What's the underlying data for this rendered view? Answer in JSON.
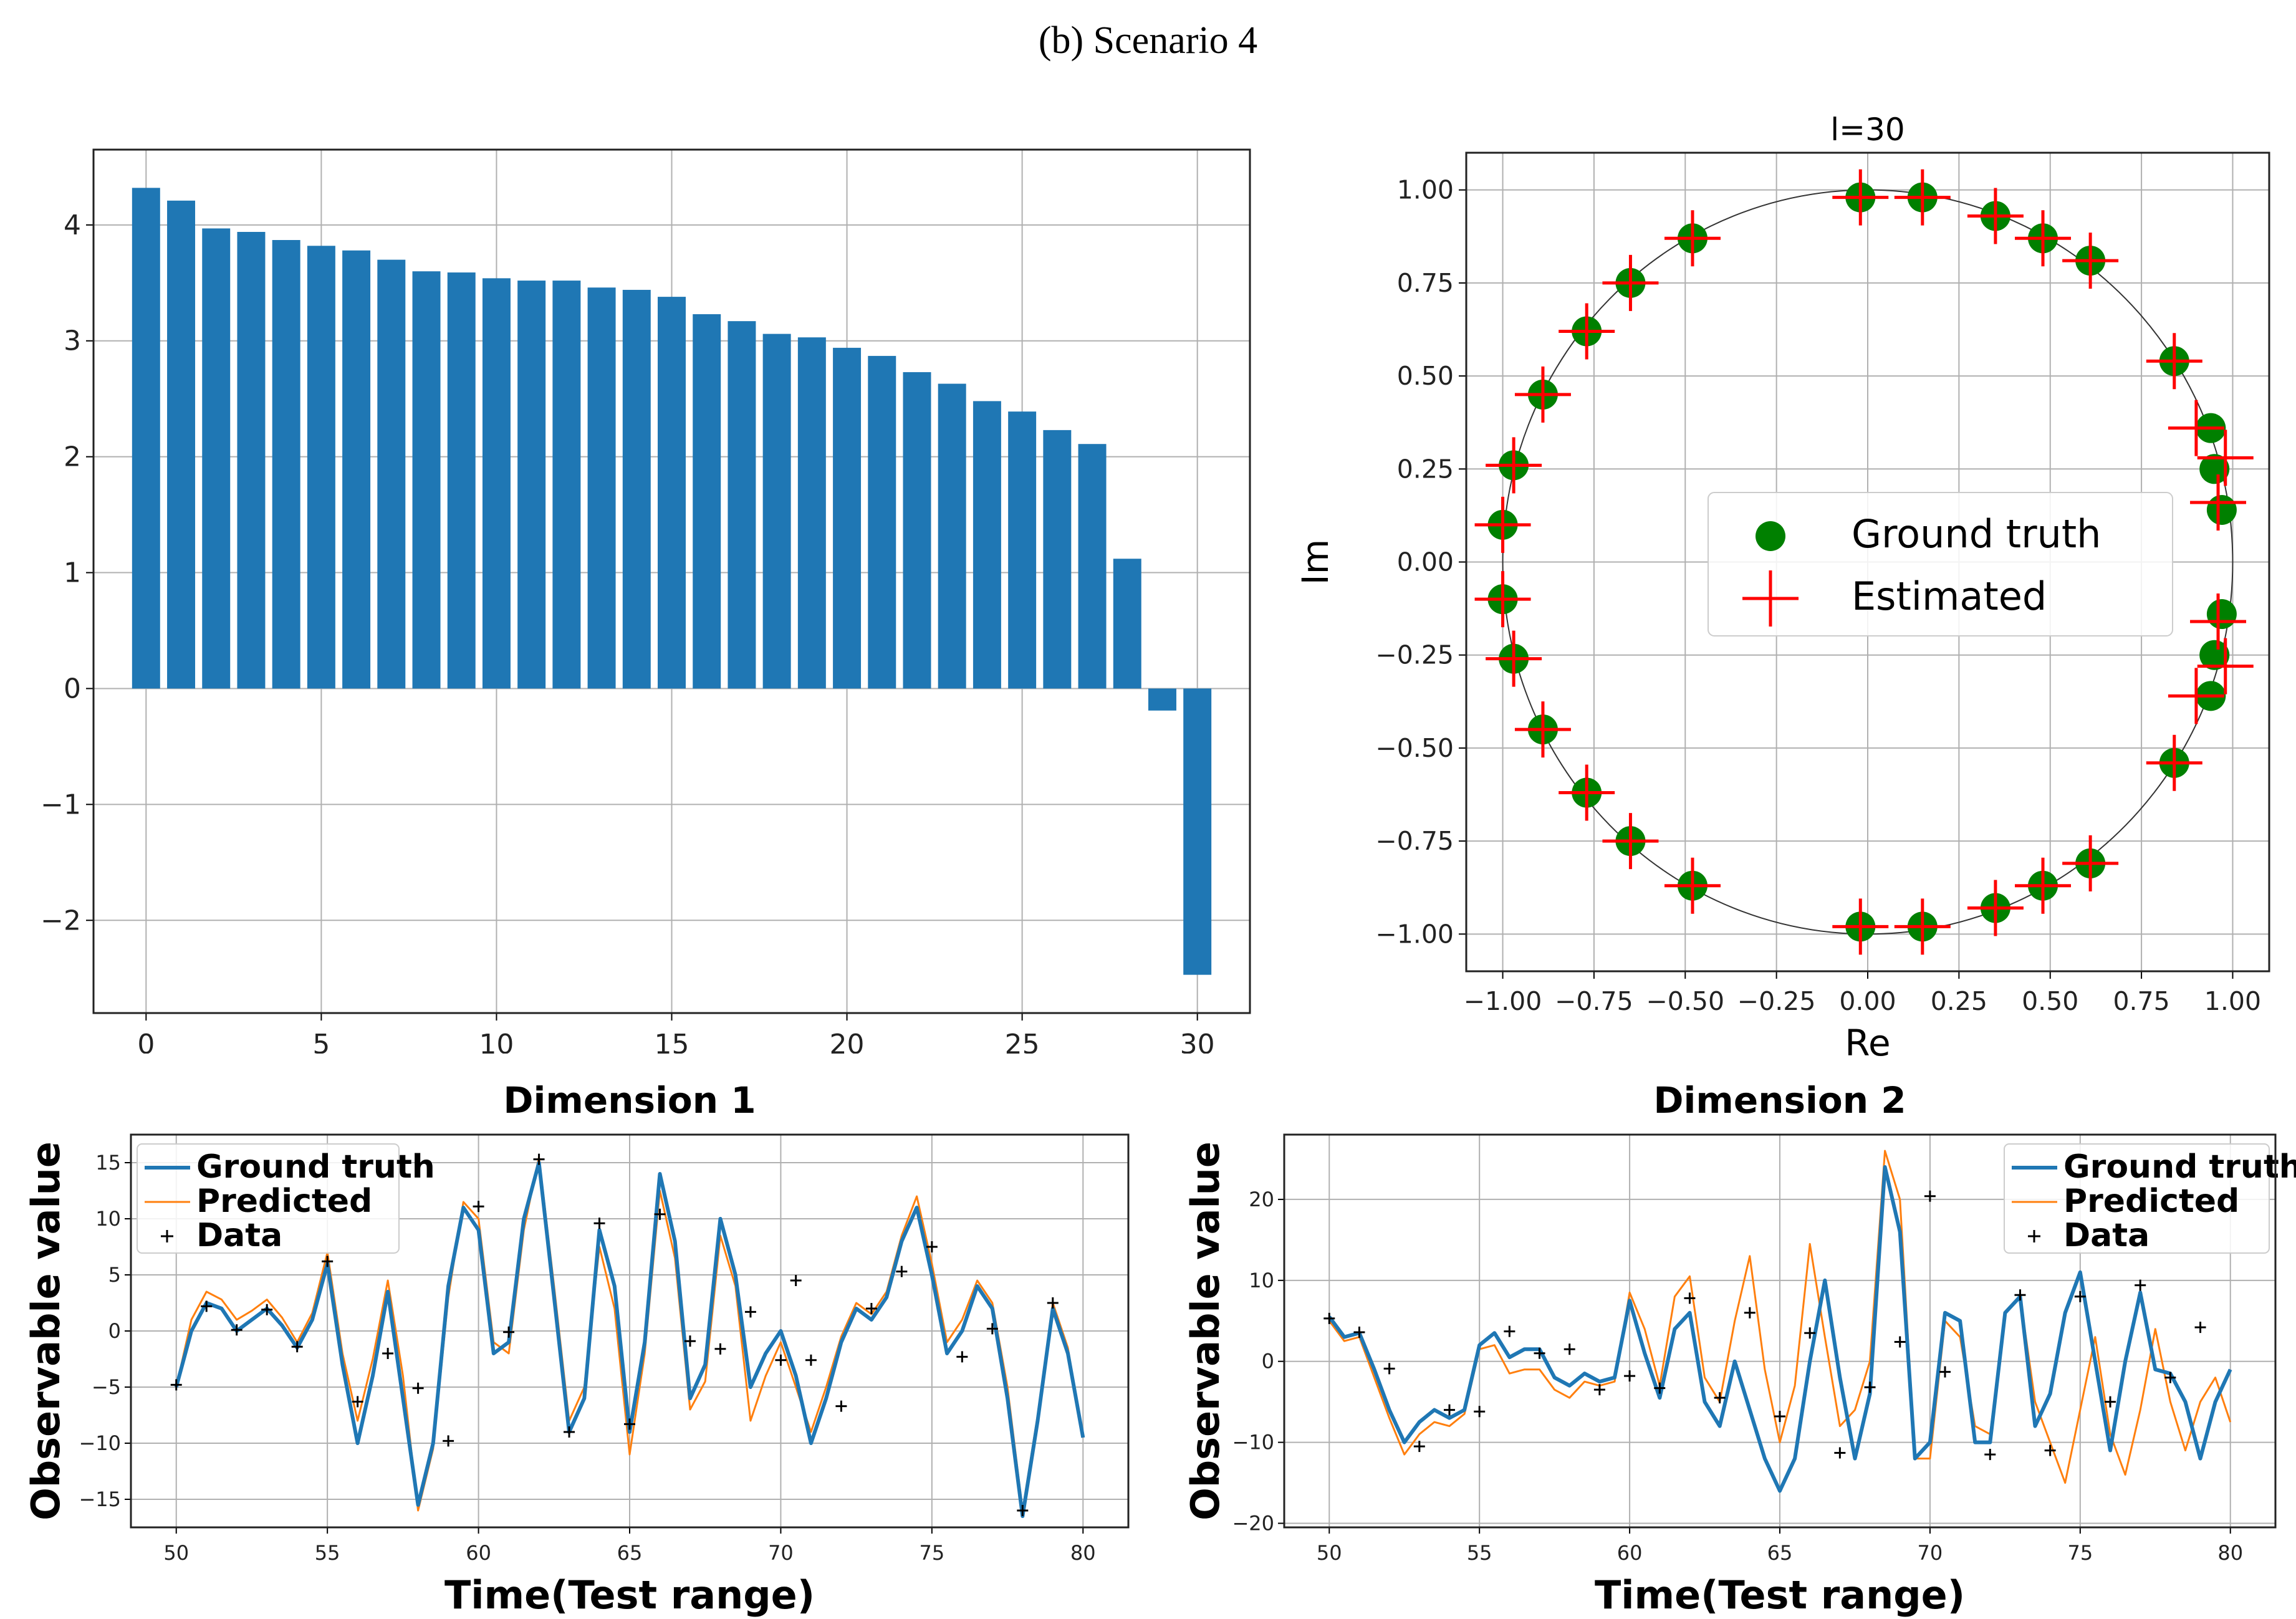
{
  "figure_title": "(b) Scenario 4",
  "colors": {
    "bar": "#1f77b4",
    "ground_truth_dot": "#008000",
    "estimated_cross": "#ff0000",
    "series_truth": "#1f77b4",
    "series_pred": "#ff7f0e",
    "data_marker": "#000000",
    "grid": "#b0b0b0"
  },
  "chart_data": [
    {
      "type": "bar",
      "title": "",
      "xlabel": "",
      "ylabel": "",
      "x": [
        0,
        1,
        2,
        3,
        4,
        5,
        6,
        7,
        8,
        9,
        10,
        11,
        12,
        13,
        14,
        15,
        16,
        17,
        18,
        19,
        20,
        21,
        22,
        23,
        24,
        25,
        26,
        27,
        28,
        29,
        30
      ],
      "values": [
        4.32,
        4.21,
        3.97,
        3.94,
        3.87,
        3.82,
        3.78,
        3.7,
        3.6,
        3.59,
        3.54,
        3.52,
        3.52,
        3.46,
        3.44,
        3.38,
        3.23,
        3.17,
        3.06,
        3.03,
        2.94,
        2.87,
        2.73,
        2.63,
        2.48,
        2.39,
        2.23,
        2.11,
        1.12,
        -0.19,
        -2.47
      ],
      "xlim": [
        -1.5,
        31.5
      ],
      "ylim": [
        -2.8,
        4.65
      ],
      "xticks": [
        0,
        5,
        10,
        15,
        20,
        25,
        30
      ],
      "xtick_labels": [
        "0",
        "5",
        "10",
        "15",
        "20",
        "25",
        "30"
      ],
      "yticks": [
        -2,
        -1,
        0,
        1,
        2,
        3,
        4
      ],
      "ytick_labels": [
        "−2",
        "−1",
        "0",
        "1",
        "2",
        "3",
        "4"
      ],
      "grid": true
    },
    {
      "type": "scatter",
      "title": "l=30",
      "xlabel": "Re",
      "ylabel": "Im",
      "xlim": [
        -1.1,
        1.1
      ],
      "ylim": [
        -1.1,
        1.1
      ],
      "xticks": [
        -1,
        -0.75,
        -0.5,
        -0.25,
        0,
        0.25,
        0.5,
        0.75,
        1
      ],
      "xtick_labels": [
        "−1.00",
        "−0.75",
        "−0.50",
        "−0.25",
        "0.00",
        "0.25",
        "0.50",
        "0.75",
        "1.00"
      ],
      "yticks": [
        1,
        0.75,
        0.5,
        0.25,
        0,
        -0.25,
        -0.5,
        -0.75,
        -1
      ],
      "ytick_labels": [
        "1.00",
        "0.75",
        "0.50",
        "0.25",
        "0.00",
        "−0.25",
        "−0.50",
        "−0.75",
        "−1.00"
      ],
      "legend": [
        "Ground truth",
        "Estimated"
      ],
      "legend_position": "center-right",
      "unit_circle": true,
      "grid": true,
      "series": [
        {
          "name": "Ground truth",
          "points": [
            [
              -0.02,
              0.98
            ],
            [
              0.15,
              0.98
            ],
            [
              0.35,
              0.93
            ],
            [
              0.48,
              0.87
            ],
            [
              0.61,
              0.81
            ],
            [
              0.84,
              0.54
            ],
            [
              0.94,
              0.36
            ],
            [
              0.95,
              0.25
            ],
            [
              0.97,
              0.14
            ],
            [
              0.97,
              -0.14
            ],
            [
              0.95,
              -0.25
            ],
            [
              0.94,
              -0.36
            ],
            [
              0.84,
              -0.54
            ],
            [
              0.61,
              -0.81
            ],
            [
              0.48,
              -0.87
            ],
            [
              0.35,
              -0.93
            ],
            [
              0.15,
              -0.98
            ],
            [
              -0.02,
              -0.98
            ],
            [
              -0.48,
              -0.87
            ],
            [
              -0.65,
              -0.75
            ],
            [
              -0.77,
              -0.62
            ],
            [
              -0.89,
              -0.45
            ],
            [
              -0.97,
              -0.26
            ],
            [
              -1.0,
              -0.1
            ],
            [
              -1.0,
              0.1
            ],
            [
              -0.97,
              0.26
            ],
            [
              -0.89,
              0.45
            ],
            [
              -0.77,
              0.62
            ],
            [
              -0.65,
              0.75
            ],
            [
              -0.48,
              0.87
            ]
          ]
        },
        {
          "name": "Estimated",
          "points": [
            [
              -0.02,
              0.98
            ],
            [
              0.15,
              0.98
            ],
            [
              0.35,
              0.93
            ],
            [
              0.48,
              0.87
            ],
            [
              0.61,
              0.81
            ],
            [
              0.84,
              0.54
            ],
            [
              0.9,
              0.36
            ],
            [
              0.98,
              0.28
            ],
            [
              0.96,
              0.16
            ],
            [
              0.96,
              -0.16
            ],
            [
              0.98,
              -0.28
            ],
            [
              0.9,
              -0.36
            ],
            [
              0.84,
              -0.54
            ],
            [
              0.61,
              -0.81
            ],
            [
              0.48,
              -0.87
            ],
            [
              0.35,
              -0.93
            ],
            [
              0.15,
              -0.98
            ],
            [
              -0.02,
              -0.98
            ],
            [
              -0.48,
              -0.87
            ],
            [
              -0.65,
              -0.75
            ],
            [
              -0.77,
              -0.62
            ],
            [
              -0.89,
              -0.45
            ],
            [
              -0.97,
              -0.26
            ],
            [
              -1.0,
              -0.1
            ],
            [
              -1.0,
              0.1
            ],
            [
              -0.97,
              0.26
            ],
            [
              -0.89,
              0.45
            ],
            [
              -0.77,
              0.62
            ],
            [
              -0.65,
              0.75
            ],
            [
              -0.48,
              0.87
            ]
          ]
        }
      ]
    },
    {
      "type": "line",
      "title": "Dimension 1",
      "xlabel": "Time(Test range)",
      "ylabel": "Observable value",
      "xlim": [
        48.5,
        81.5
      ],
      "ylim": [
        -17.5,
        17.5
      ],
      "xticks": [
        50,
        55,
        60,
        65,
        70,
        75,
        80
      ],
      "xtick_labels": [
        "50",
        "55",
        "60",
        "65",
        "70",
        "75",
        "80"
      ],
      "yticks": [
        15,
        10,
        5,
        0,
        -5,
        -10,
        -15
      ],
      "ytick_labels": [
        "15",
        "10",
        "5",
        "0",
        "−5",
        "−10",
        "−15"
      ],
      "legend": [
        "Ground truth",
        "Predicted",
        "Data"
      ],
      "legend_position": "top-left",
      "grid": true,
      "x": [
        50,
        50.5,
        51,
        51.5,
        52,
        52.5,
        53,
        53.5,
        54,
        54.5,
        55,
        55.5,
        56,
        56.5,
        57,
        57.5,
        58,
        58.5,
        59,
        59.5,
        60,
        60.5,
        61,
        61.5,
        62,
        62.5,
        63,
        63.5,
        64,
        64.5,
        65,
        65.5,
        66,
        66.5,
        67,
        67.5,
        68,
        68.5,
        69,
        69.5,
        70,
        70.5,
        71,
        71.5,
        72,
        72.5,
        73,
        73.5,
        74,
        74.5,
        75,
        75.5,
        76,
        76.5,
        77,
        77.5,
        78,
        78.5,
        79,
        79.5,
        80
      ],
      "series": [
        {
          "name": "Ground truth",
          "values": [
            -5,
            0,
            2.5,
            2,
            0,
            1,
            2,
            0.5,
            -1.5,
            1,
            6,
            -3,
            -10,
            -4,
            3.5,
            -6,
            -15.5,
            -10,
            4,
            11,
            9,
            -2,
            -1,
            10,
            15,
            3,
            -9,
            -6,
            9,
            4,
            -9,
            -1,
            14,
            8,
            -6,
            -3,
            10,
            5,
            -5,
            -2,
            0,
            -4,
            -10,
            -6,
            -1,
            2,
            1,
            3,
            8,
            11,
            5,
            -2,
            0,
            4,
            2,
            -6,
            -16.5,
            -8,
            2,
            -2,
            -9.5
          ]
        },
        {
          "name": "Predicted",
          "values": [
            -5,
            1,
            3.5,
            2.8,
            1,
            1.8,
            2.8,
            1.2,
            -1,
            1.6,
            7,
            -2,
            -8,
            -2.5,
            4.5,
            -4,
            -16,
            -10.5,
            3,
            11.5,
            10,
            -1,
            -2,
            9,
            15.5,
            4,
            -8,
            -5,
            7.5,
            2,
            -11,
            -2,
            12.5,
            6.5,
            -7,
            -4.5,
            8.5,
            4,
            -8,
            -4,
            -1,
            -5,
            -9,
            -5,
            -0.5,
            2.5,
            1.5,
            3.5,
            8.5,
            12,
            6,
            -1,
            1,
            4.5,
            2.5,
            -5,
            -16,
            -7.5,
            2.5,
            -1.5,
            -9.5
          ]
        },
        {
          "name": "Data",
          "points": [
            [
              50,
              -4.8
            ],
            [
              51,
              2.2
            ],
            [
              52,
              0.1
            ],
            [
              53,
              1.9
            ],
            [
              54,
              -1.4
            ],
            [
              55,
              6.2
            ],
            [
              56,
              -6.3
            ],
            [
              57,
              -2
            ],
            [
              58,
              -5.1
            ],
            [
              59,
              -9.8
            ],
            [
              60,
              11.1
            ],
            [
              61,
              -0.1
            ],
            [
              62,
              15.3
            ],
            [
              63,
              -9
            ],
            [
              64,
              9.6
            ],
            [
              65,
              -8.3
            ],
            [
              66,
              10.4
            ],
            [
              67,
              -0.9
            ],
            [
              68,
              -1.6
            ],
            [
              69,
              1.7
            ],
            [
              70,
              -2.6
            ],
            [
              70.5,
              4.5
            ],
            [
              71,
              -2.6
            ],
            [
              72,
              -6.7
            ],
            [
              73,
              2
            ],
            [
              74,
              5.3
            ],
            [
              75,
              7.5
            ],
            [
              76,
              -2.3
            ],
            [
              77,
              0.2
            ],
            [
              78,
              -16
            ],
            [
              79,
              2.5
            ]
          ]
        }
      ]
    },
    {
      "type": "line",
      "title": "Dimension 2",
      "xlabel": "Time(Test range)",
      "ylabel": "Observable value",
      "xlim": [
        48.5,
        81.5
      ],
      "ylim": [
        -20.5,
        28
      ],
      "xticks": [
        50,
        55,
        60,
        65,
        70,
        75,
        80
      ],
      "xtick_labels": [
        "50",
        "55",
        "60",
        "65",
        "70",
        "75",
        "80"
      ],
      "yticks": [
        20,
        10,
        0,
        -10,
        -20
      ],
      "ytick_labels": [
        "20",
        "10",
        "0",
        "−10",
        "−20"
      ],
      "legend": [
        "Ground truth",
        "Predicted",
        "Data"
      ],
      "legend_position": "top-right",
      "grid": true,
      "x": [
        50,
        50.5,
        51,
        51.5,
        52,
        52.5,
        53,
        53.5,
        54,
        54.5,
        55,
        55.5,
        56,
        56.5,
        57,
        57.5,
        58,
        58.5,
        59,
        59.5,
        60,
        60.5,
        61,
        61.5,
        62,
        62.5,
        63,
        63.5,
        64,
        64.5,
        65,
        65.5,
        66,
        66.5,
        67,
        67.5,
        68,
        68.5,
        69,
        69.5,
        70,
        70.5,
        71,
        71.5,
        72,
        72.5,
        73,
        73.5,
        74,
        74.5,
        75,
        75.5,
        76,
        76.5,
        77,
        77.5,
        78,
        78.5,
        79,
        79.5,
        80
      ],
      "series": [
        {
          "name": "Ground truth",
          "values": [
            5.5,
            3,
            3.5,
            -1,
            -6,
            -10,
            -7.5,
            -6,
            -7,
            -6,
            2,
            3.5,
            0.5,
            1.5,
            1.5,
            -2,
            -3,
            -1.5,
            -2.5,
            -2,
            7.5,
            1,
            -4.5,
            4,
            6,
            -5,
            -8,
            0,
            -6,
            -12,
            -16,
            -12,
            0,
            10,
            -2,
            -12,
            -4,
            24,
            16,
            -12,
            -10,
            6,
            5,
            -10,
            -10,
            6,
            8,
            -8,
            -4,
            6,
            11,
            0,
            -11,
            0,
            8.5,
            -1,
            -1.5,
            -5,
            -12,
            -5,
            -1
          ]
        },
        {
          "name": "Predicted",
          "values": [
            5,
            2.5,
            3,
            -2,
            -7,
            -11.5,
            -9,
            -7.5,
            -8,
            -6.5,
            1.5,
            2,
            -1.5,
            -1,
            -1,
            -3.5,
            -4.5,
            -2.5,
            -3,
            -2.5,
            8.5,
            4,
            -3,
            8,
            10.5,
            -2,
            -5,
            5,
            13,
            -1,
            -10,
            -3,
            14.5,
            3,
            -8,
            -6,
            0,
            26,
            20,
            -12,
            -12,
            5,
            3,
            -8,
            -9,
            6,
            8,
            -5,
            -10,
            -15,
            -6,
            3,
            -9,
            -14,
            -6,
            4,
            -5,
            -11,
            -5,
            -2,
            -7.5
          ]
        },
        {
          "name": "Data",
          "points": [
            [
              50,
              5.3
            ],
            [
              51,
              3.6
            ],
            [
              52,
              -0.9
            ],
            [
              53,
              -10.5
            ],
            [
              54,
              -6
            ],
            [
              55,
              -6.2
            ],
            [
              56,
              3.7
            ],
            [
              57,
              1
            ],
            [
              58,
              1.5
            ],
            [
              59,
              -3.5
            ],
            [
              60,
              -1.8
            ],
            [
              61,
              -3.3
            ],
            [
              62,
              7.8
            ],
            [
              63,
              -4.5
            ],
            [
              64,
              6
            ],
            [
              65,
              -6.8
            ],
            [
              66,
              3.5
            ],
            [
              67,
              -11.3
            ],
            [
              68,
              -3.2
            ],
            [
              69,
              2.4
            ],
            [
              70,
              20.4
            ],
            [
              70.5,
              -1.3
            ],
            [
              72,
              -11.5
            ],
            [
              73,
              8.2
            ],
            [
              74,
              -11
            ],
            [
              75,
              8
            ],
            [
              76,
              -5
            ],
            [
              77,
              9.4
            ],
            [
              78,
              -2
            ],
            [
              79,
              4.2
            ]
          ]
        }
      ]
    }
  ]
}
